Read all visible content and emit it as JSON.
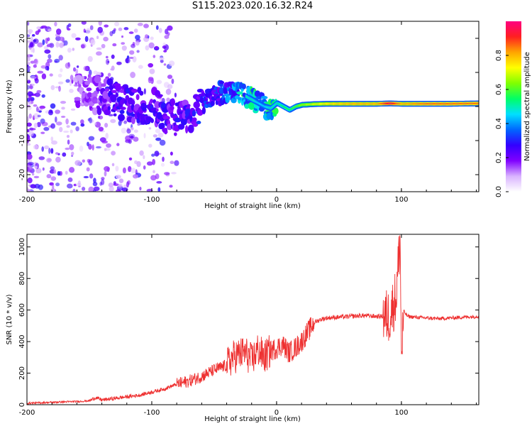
{
  "title": "S115.2023.020.16.32.R24",
  "chart_data": [
    {
      "type": "heatmap",
      "title": "S115.2023.020.16.32.R24",
      "xlabel": "Height of straight line (km)",
      "ylabel": "Frequency (Hz)",
      "xlim": [
        -200,
        162
      ],
      "ylim": [
        -25,
        25
      ],
      "xticks": [
        -200,
        -100,
        0,
        100
      ],
      "yticks": [
        -20,
        -10,
        0,
        10,
        20
      ],
      "colorbar": {
        "label": "Normalized spectral amplitude",
        "range": [
          0,
          1
        ],
        "ticks": [
          "0.0",
          "0.2",
          "0.4",
          "0.6",
          "0.8"
        ],
        "colors": [
          "#ffffff",
          "#d9b3ff",
          "#8000ff",
          "#3300ff",
          "#0066ff",
          "#00e0ff",
          "#00ff66",
          "#80ff00",
          "#ffff00",
          "#ffa500",
          "#ff2020",
          "#ff0080"
        ]
      },
      "ridge": {
        "x": [
          -150,
          -140,
          -130,
          -120,
          -110,
          -100,
          -90,
          -80,
          -70,
          -60,
          -50,
          -45,
          -40,
          -35,
          -30,
          -25,
          -20,
          -15,
          -10,
          -5,
          0,
          5,
          10,
          15,
          20,
          30,
          40,
          60,
          80,
          90,
          100,
          120,
          140,
          162
        ],
        "y": [
          4,
          3,
          2,
          1,
          0,
          0,
          -2,
          -4,
          -2,
          1,
          3,
          4,
          4.5,
          4,
          3.5,
          3,
          2,
          1,
          0,
          -0.5,
          1,
          0,
          -1,
          0,
          0.5,
          0.7,
          0.8,
          0.8,
          0.8,
          0.9,
          0.8,
          0.8,
          0.8,
          0.9
        ],
        "amplitude": [
          0.15,
          0.2,
          0.25,
          0.25,
          0.25,
          0.25,
          0.25,
          0.25,
          0.25,
          0.3,
          0.3,
          0.3,
          0.35,
          0.4,
          0.45,
          0.5,
          0.5,
          0.45,
          0.45,
          0.5,
          0.5,
          0.55,
          0.55,
          0.6,
          0.65,
          0.7,
          0.75,
          0.8,
          0.8,
          0.95,
          0.8,
          0.85,
          0.85,
          0.85
        ]
      }
    },
    {
      "type": "line",
      "xlabel": "Height of straight line (km)",
      "ylabel": "SNR (10 * v/v)",
      "xlim": [
        -200,
        162
      ],
      "ylim": [
        0,
        1080
      ],
      "xticks": [
        -200,
        -100,
        0,
        100
      ],
      "yticks": [
        0,
        200,
        400,
        600,
        800,
        1000
      ],
      "color": "#ee3030",
      "series": [
        {
          "x": [
            -200,
            -190,
            -180,
            -170,
            -160,
            -150,
            -145,
            -140,
            -130,
            -120,
            -110,
            -100,
            -90,
            -80,
            -70,
            -60,
            -50,
            -40,
            -35,
            -30,
            -25,
            -20,
            -15,
            -10,
            -5,
            0,
            5,
            10,
            15,
            20,
            25,
            30,
            35,
            40,
            50,
            60,
            70,
            80,
            90,
            93,
            96,
            98,
            99,
            100,
            102,
            105,
            110,
            120,
            130,
            140,
            150,
            162
          ],
          "y": [
            10,
            12,
            15,
            18,
            20,
            25,
            45,
            30,
            40,
            50,
            60,
            80,
            100,
            130,
            150,
            180,
            220,
            250,
            300,
            320,
            330,
            280,
            350,
            300,
            340,
            360,
            380,
            330,
            360,
            400,
            460,
            520,
            540,
            550,
            555,
            560,
            565,
            560,
            560,
            620,
            700,
            950,
            1050,
            300,
            590,
            560,
            555,
            550,
            545,
            550,
            555,
            560
          ]
        }
      ]
    }
  ]
}
